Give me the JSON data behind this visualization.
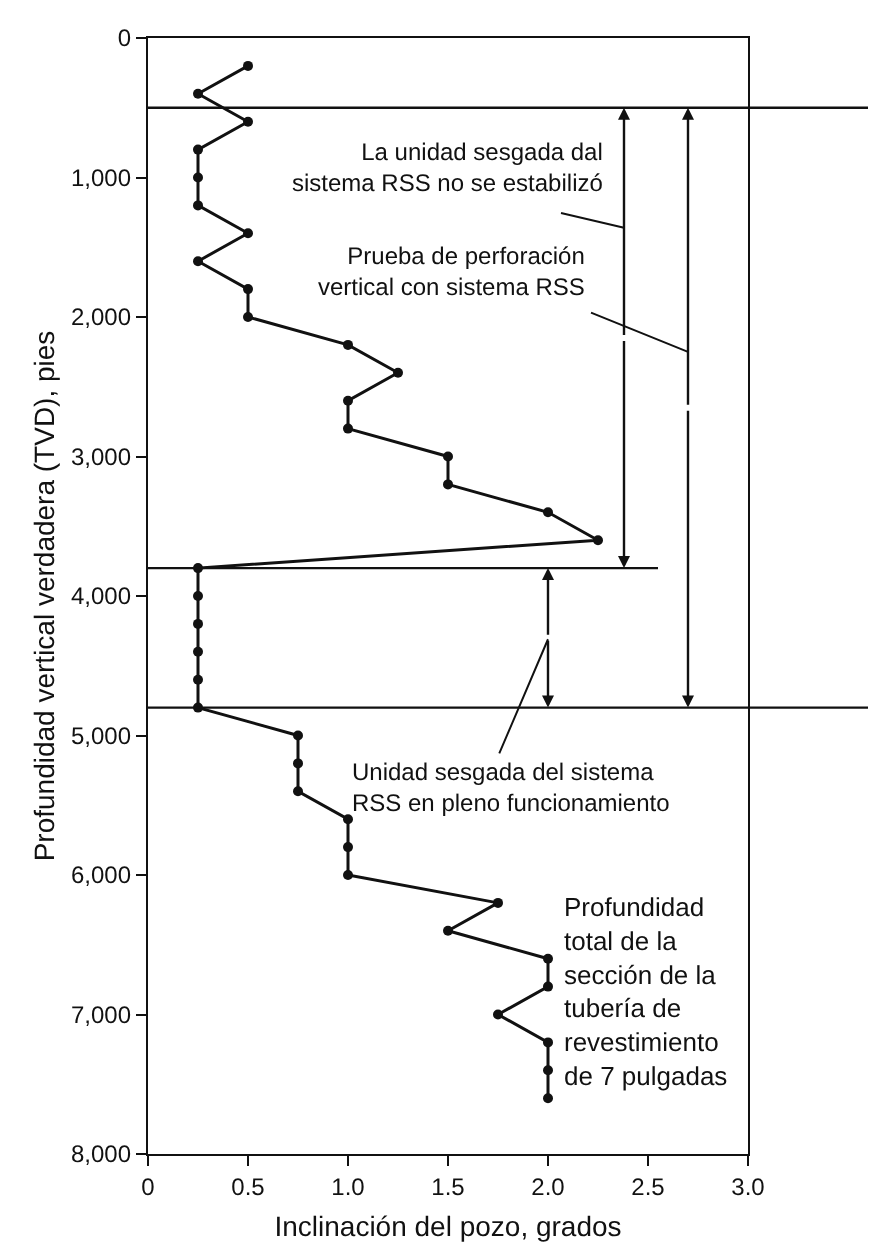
{
  "chart_data": {
    "type": "line",
    "xlabel": "Inclinación del pozo, grados",
    "ylabel": "Profundidad vertical verdadera (TVD), pies",
    "x": [
      0.5,
      0.25,
      0.5,
      0.25,
      0.25,
      0.25,
      0.5,
      0.25,
      0.5,
      0.5,
      1.0,
      1.25,
      1.0,
      1.0,
      1.5,
      1.5,
      2.0,
      2.25,
      0.25,
      0.25,
      0.25,
      0.25,
      0.25,
      0.25,
      0.75,
      0.75,
      0.75,
      1.0,
      1.0,
      1.0,
      1.75,
      1.5,
      2.0,
      2.0,
      1.75,
      2.0,
      2.0,
      2.0
    ],
    "values": [
      200,
      400,
      600,
      800,
      1000,
      1200,
      1400,
      1600,
      1800,
      2000,
      2200,
      2400,
      2600,
      2800,
      3000,
      3200,
      3400,
      3600,
      3800,
      4000,
      4200,
      4400,
      4600,
      4800,
      5000,
      5200,
      5400,
      5600,
      5800,
      6000,
      6200,
      6400,
      6600,
      6800,
      7000,
      7200,
      7400,
      7600
    ],
    "color": "#111111",
    "marker": "circle",
    "line_style": "solid",
    "legend": false,
    "xlim": [
      0,
      3.0
    ],
    "xticks": [
      0,
      0.5,
      {
        "value": 1,
        "label": "1.0"
      },
      1.5,
      {
        "value": 2,
        "label": "2.0"
      },
      2.5,
      {
        "value": 3,
        "label": "3.0"
      }
    ],
    "ylim": [
      8000,
      0
    ],
    "yticks": [
      0,
      {
        "value": 1000,
        "label": "1,000"
      },
      {
        "value": 2000,
        "label": "2,000"
      },
      {
        "value": 3000,
        "label": "3,000"
      },
      {
        "value": 4000,
        "label": "4,000"
      },
      {
        "value": 5000,
        "label": "5,000"
      },
      {
        "value": 6000,
        "label": "6,000"
      },
      {
        "value": 7000,
        "label": "7,000"
      },
      {
        "value": 8000,
        "label": "8,000"
      }
    ],
    "ref_lines": [
      {
        "axis": "y",
        "value": 500,
        "label": null
      },
      {
        "axis": "y",
        "value": 3800,
        "label": null
      },
      {
        "axis": "y",
        "value": 4800,
        "label": null
      }
    ],
    "annotations": [
      "La unidad sesgada dal\nsistema RSS no se estabilizó",
      "Prueba de perforación\nvertical con sistema RSS",
      "Unidad sesgada del sistema\nRSS en pleno funcionamiento",
      "Profundidad\ntotal de la\nsección de la\ntubería de\nrevestimiento\nde 7 pulgadas"
    ]
  }
}
